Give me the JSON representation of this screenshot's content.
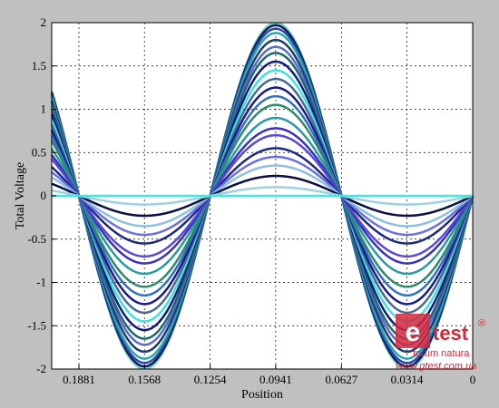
{
  "chart_data": {
    "type": "line",
    "title": "",
    "xlabel": "Position",
    "ylabel": "Total Voltage",
    "xlim": [
      0.2011,
      0
    ],
    "ylim": [
      -2,
      2
    ],
    "x_ticks": [
      "0.1881",
      "0.1568",
      "0.1254",
      "0.0941",
      "0.0627",
      "0.0314",
      "0"
    ],
    "x_tick_values": [
      0.1881,
      0.1568,
      0.1254,
      0.0941,
      0.0627,
      0.0314,
      0
    ],
    "y_ticks": [
      "-2",
      "-1.5",
      "-1",
      "-0.5",
      "0",
      "0.5",
      "1",
      "1.5",
      "2"
    ],
    "y_tick_values": [
      -2,
      -1.5,
      -1,
      -0.5,
      0,
      0.5,
      1,
      1.5,
      2
    ],
    "grid": true,
    "wavelength": 0.0627,
    "series": [
      {
        "amplitude": 2.0,
        "color": "#7fd6c8"
      },
      {
        "amplitude": 1.97,
        "color": "#0a1a5a"
      },
      {
        "amplitude": 1.93,
        "color": "#2a4aa8"
      },
      {
        "amplitude": 1.88,
        "color": "#2aa8b0"
      },
      {
        "amplitude": 1.8,
        "color": "#1c3a6e"
      },
      {
        "amplitude": 1.72,
        "color": "#5a6ad0"
      },
      {
        "amplitude": 1.65,
        "color": "#1c6a6a"
      },
      {
        "amplitude": 1.55,
        "color": "#0e1a80"
      },
      {
        "amplitude": 1.45,
        "color": "#40e0e0"
      },
      {
        "amplitude": 1.35,
        "color": "#486a90"
      },
      {
        "amplitude": 1.25,
        "color": "#1a1a8a"
      },
      {
        "amplitude": 1.15,
        "color": "#3070c0"
      },
      {
        "amplitude": 1.05,
        "color": "#2e8a6a"
      },
      {
        "amplitude": 0.9,
        "color": "#2a9aa0"
      },
      {
        "amplitude": 0.78,
        "color": "#3a30c0"
      },
      {
        "amplitude": 0.7,
        "color": "#5a48d8"
      },
      {
        "amplitude": 0.55,
        "color": "#1a2a80"
      },
      {
        "amplitude": 0.45,
        "color": "#6a70e0"
      },
      {
        "amplitude": 0.35,
        "color": "#90c0e0"
      },
      {
        "amplitude": 0.23,
        "color": "#0a1040"
      },
      {
        "amplitude": 0.1,
        "color": "#a0d0e0"
      },
      {
        "amplitude": 0.0,
        "color": "#40e8e0"
      }
    ]
  },
  "watermark": {
    "logo_letter": "e",
    "name": "test",
    "registered": "®",
    "tagline": "forum natura",
    "url": "www.gtest.com.ua"
  }
}
